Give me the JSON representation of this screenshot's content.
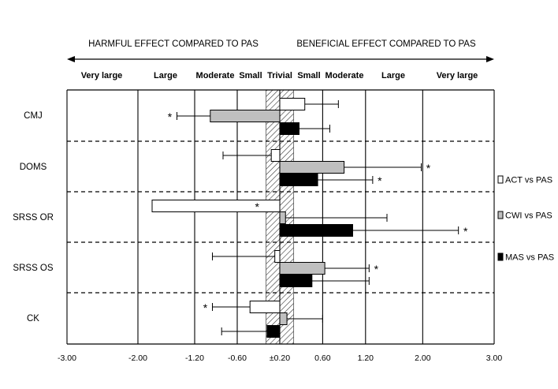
{
  "chart_data": {
    "type": "bar",
    "orientation": "horizontal",
    "header_left": "HARMFUL EFFECT COMPARED TO PAS",
    "header_right": "BENEFICIAL EFFECT COMPARED TO PAS",
    "magnitude_labels": [
      "Very large",
      "Large",
      "Moderate",
      "Small",
      "Trivial",
      "Small",
      "Moderate",
      "Large",
      "Very large"
    ],
    "x_ticks": [
      {
        "value": -3.0,
        "label": "-3.00"
      },
      {
        "value": -2.0,
        "label": "-2.00"
      },
      {
        "value": -1.2,
        "label": "-1.20"
      },
      {
        "value": -0.6,
        "label": "-0.60"
      },
      {
        "value": 0.0,
        "label": "±0.20"
      },
      {
        "value": 0.6,
        "label": "0.60"
      },
      {
        "value": 1.2,
        "label": "1.20"
      },
      {
        "value": 2.0,
        "label": "2.00"
      },
      {
        "value": 3.0,
        "label": "3.00"
      }
    ],
    "xlim": [
      -3.0,
      3.0
    ],
    "trivial_band": [
      -0.2,
      0.2
    ],
    "categories": [
      "CMJ",
      "DOMS",
      "SRSS OR",
      "SRSS OS",
      "CK"
    ],
    "series": [
      {
        "name": "ACT vs PAS",
        "color": "#ffffff",
        "values": [
          0.35,
          -0.12,
          -1.8,
          -0.07,
          -0.42
        ],
        "ci_end": [
          0.82,
          -0.8,
          -0.42,
          -0.95,
          -0.95
        ],
        "significant": [
          false,
          false,
          true,
          false,
          true
        ]
      },
      {
        "name": "CWI vs PAS",
        "color": "#bfbfbf",
        "values": [
          -0.98,
          0.9,
          0.08,
          0.63,
          0.1
        ],
        "ci_end": [
          -1.45,
          1.98,
          1.5,
          1.25,
          0.6
        ],
        "significant": [
          true,
          true,
          false,
          true,
          false
        ]
      },
      {
        "name": "MAS vs PAS",
        "color": "#000000",
        "values": [
          0.27,
          0.53,
          1.02,
          0.45,
          -0.18
        ],
        "ci_end": [
          0.7,
          1.3,
          2.5,
          1.25,
          -0.82
        ],
        "significant": [
          false,
          true,
          true,
          false,
          false
        ]
      }
    ],
    "significance_marker": "*",
    "legend_position": "right",
    "grid": true
  }
}
